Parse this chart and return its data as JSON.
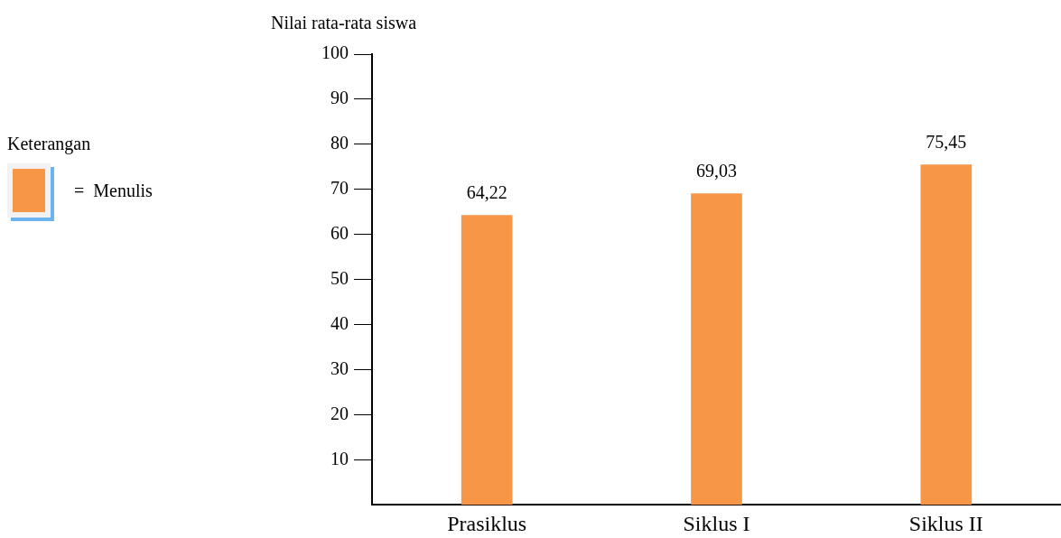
{
  "chart_data": {
    "type": "bar",
    "ylabel": "Nilai rata-rata siswa",
    "legend_title": "Keterangan",
    "categories": [
      "Prasiklus",
      "Siklus I",
      "Siklus II"
    ],
    "series": [
      {
        "name": "Menulis",
        "color": "#f79646",
        "values": [
          64.22,
          69.03,
          75.45
        ],
        "value_labels": [
          "64,22",
          "69,03",
          "75,45"
        ]
      }
    ],
    "annotations": [
      "="
    ],
    "ylim": [
      0,
      100
    ],
    "yticks": [
      10,
      20,
      30,
      40,
      50,
      60,
      70,
      80,
      90,
      100
    ],
    "legend": "left",
    "grid": false
  }
}
